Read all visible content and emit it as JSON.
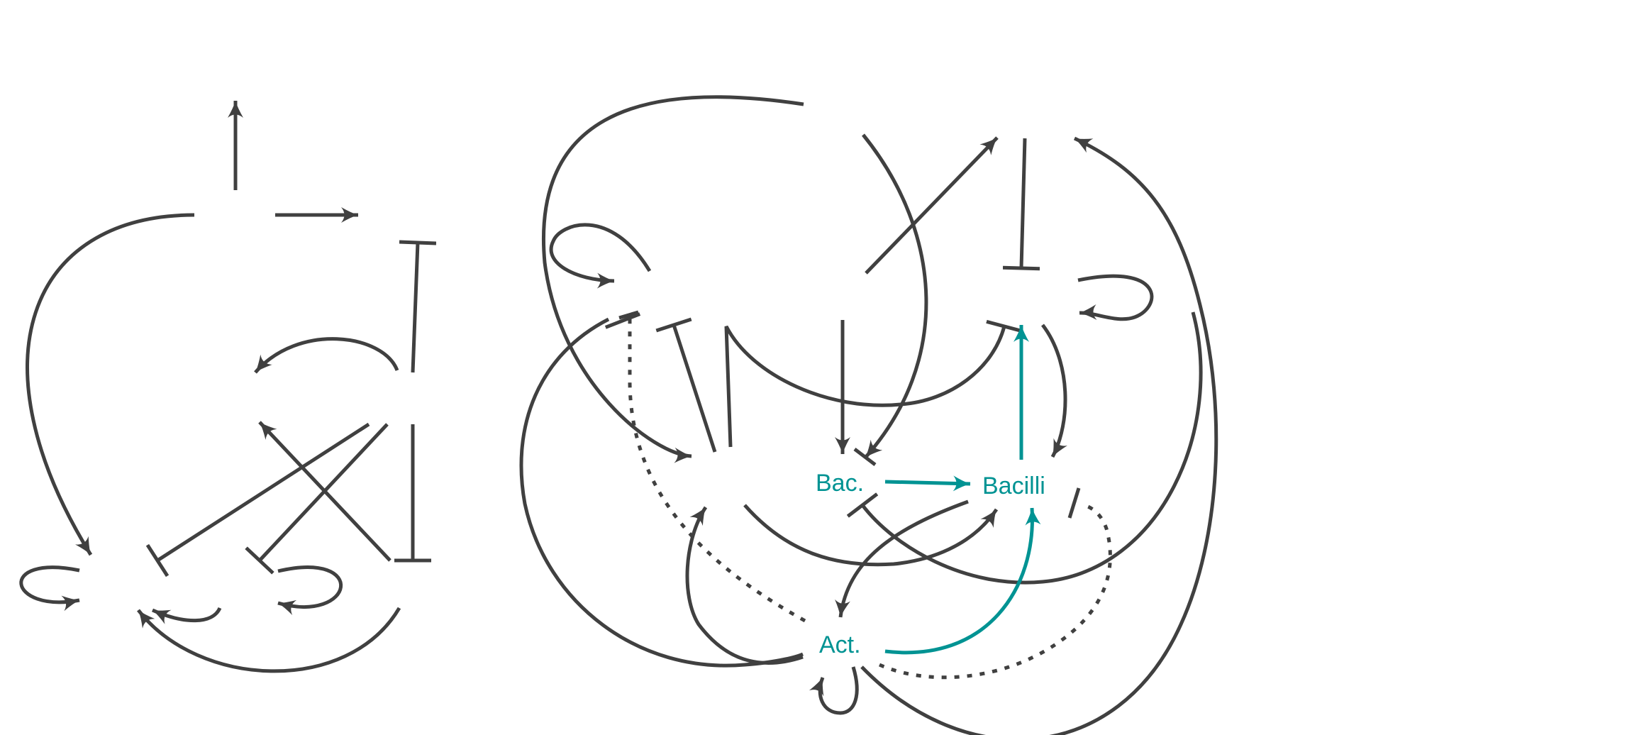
{
  "colors": {
    "edge": "#404040",
    "highlight": "#009393",
    "background": "#ffffff"
  },
  "nodes": {
    "bac": "Bac.",
    "bacilli": "Bacilli",
    "act": "Act."
  }
}
